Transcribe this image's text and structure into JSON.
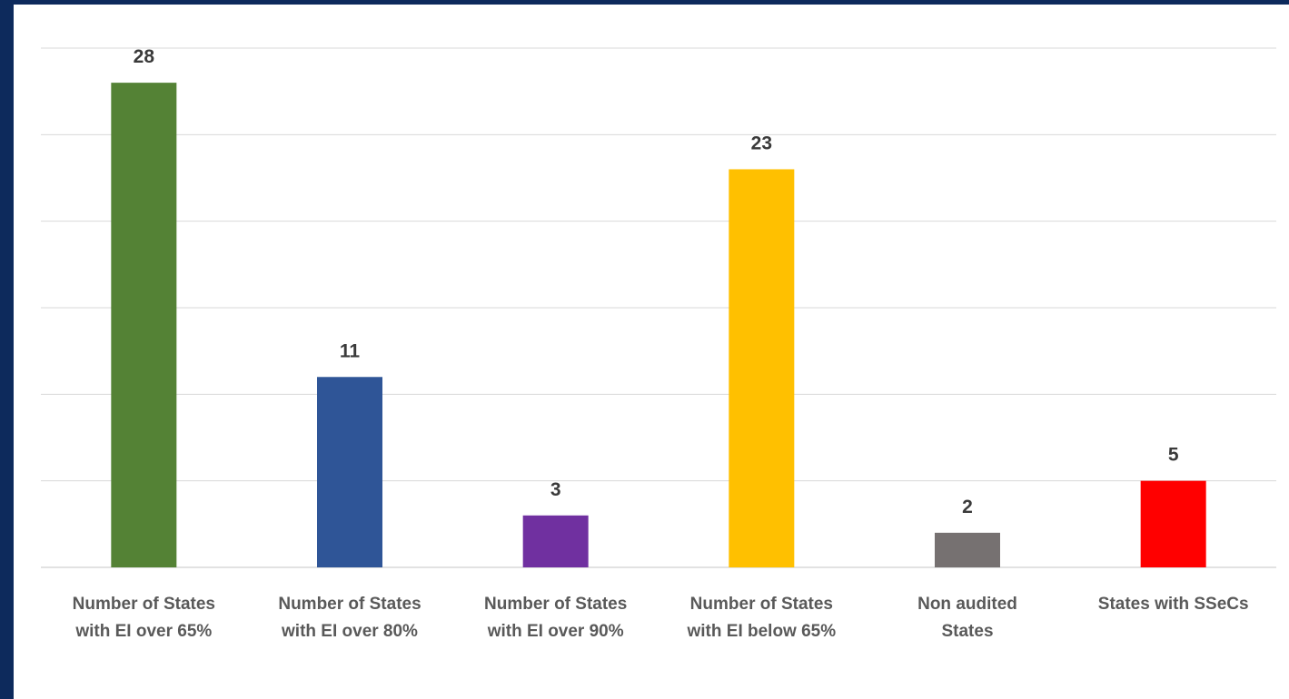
{
  "chart_data": {
    "type": "bar",
    "categories": [
      [
        "Number of States",
        "with EI over 65%"
      ],
      [
        "Number of States",
        "with EI over 80%"
      ],
      [
        "Number of States",
        "with EI over 90%"
      ],
      [
        "Number of States",
        "with EI below 65%"
      ],
      [
        "Non audited",
        "States"
      ],
      [
        "States with SSeCs"
      ]
    ],
    "values": [
      28,
      11,
      3,
      23,
      2,
      5
    ],
    "colors": [
      "#548235",
      "#2f5597",
      "#7030a0",
      "#ffc000",
      "#767171",
      "#ff0000"
    ],
    "ylim": [
      0,
      30
    ],
    "gridlines": [
      0,
      5,
      10,
      15,
      20,
      25,
      30
    ],
    "grid": true,
    "legend": "none",
    "data_labels": true
  },
  "style": {
    "frame_color": "#0d2a5c",
    "grid_color": "#d9d9d9",
    "label_color": "#595959",
    "value_color": "#3a3a3a"
  }
}
